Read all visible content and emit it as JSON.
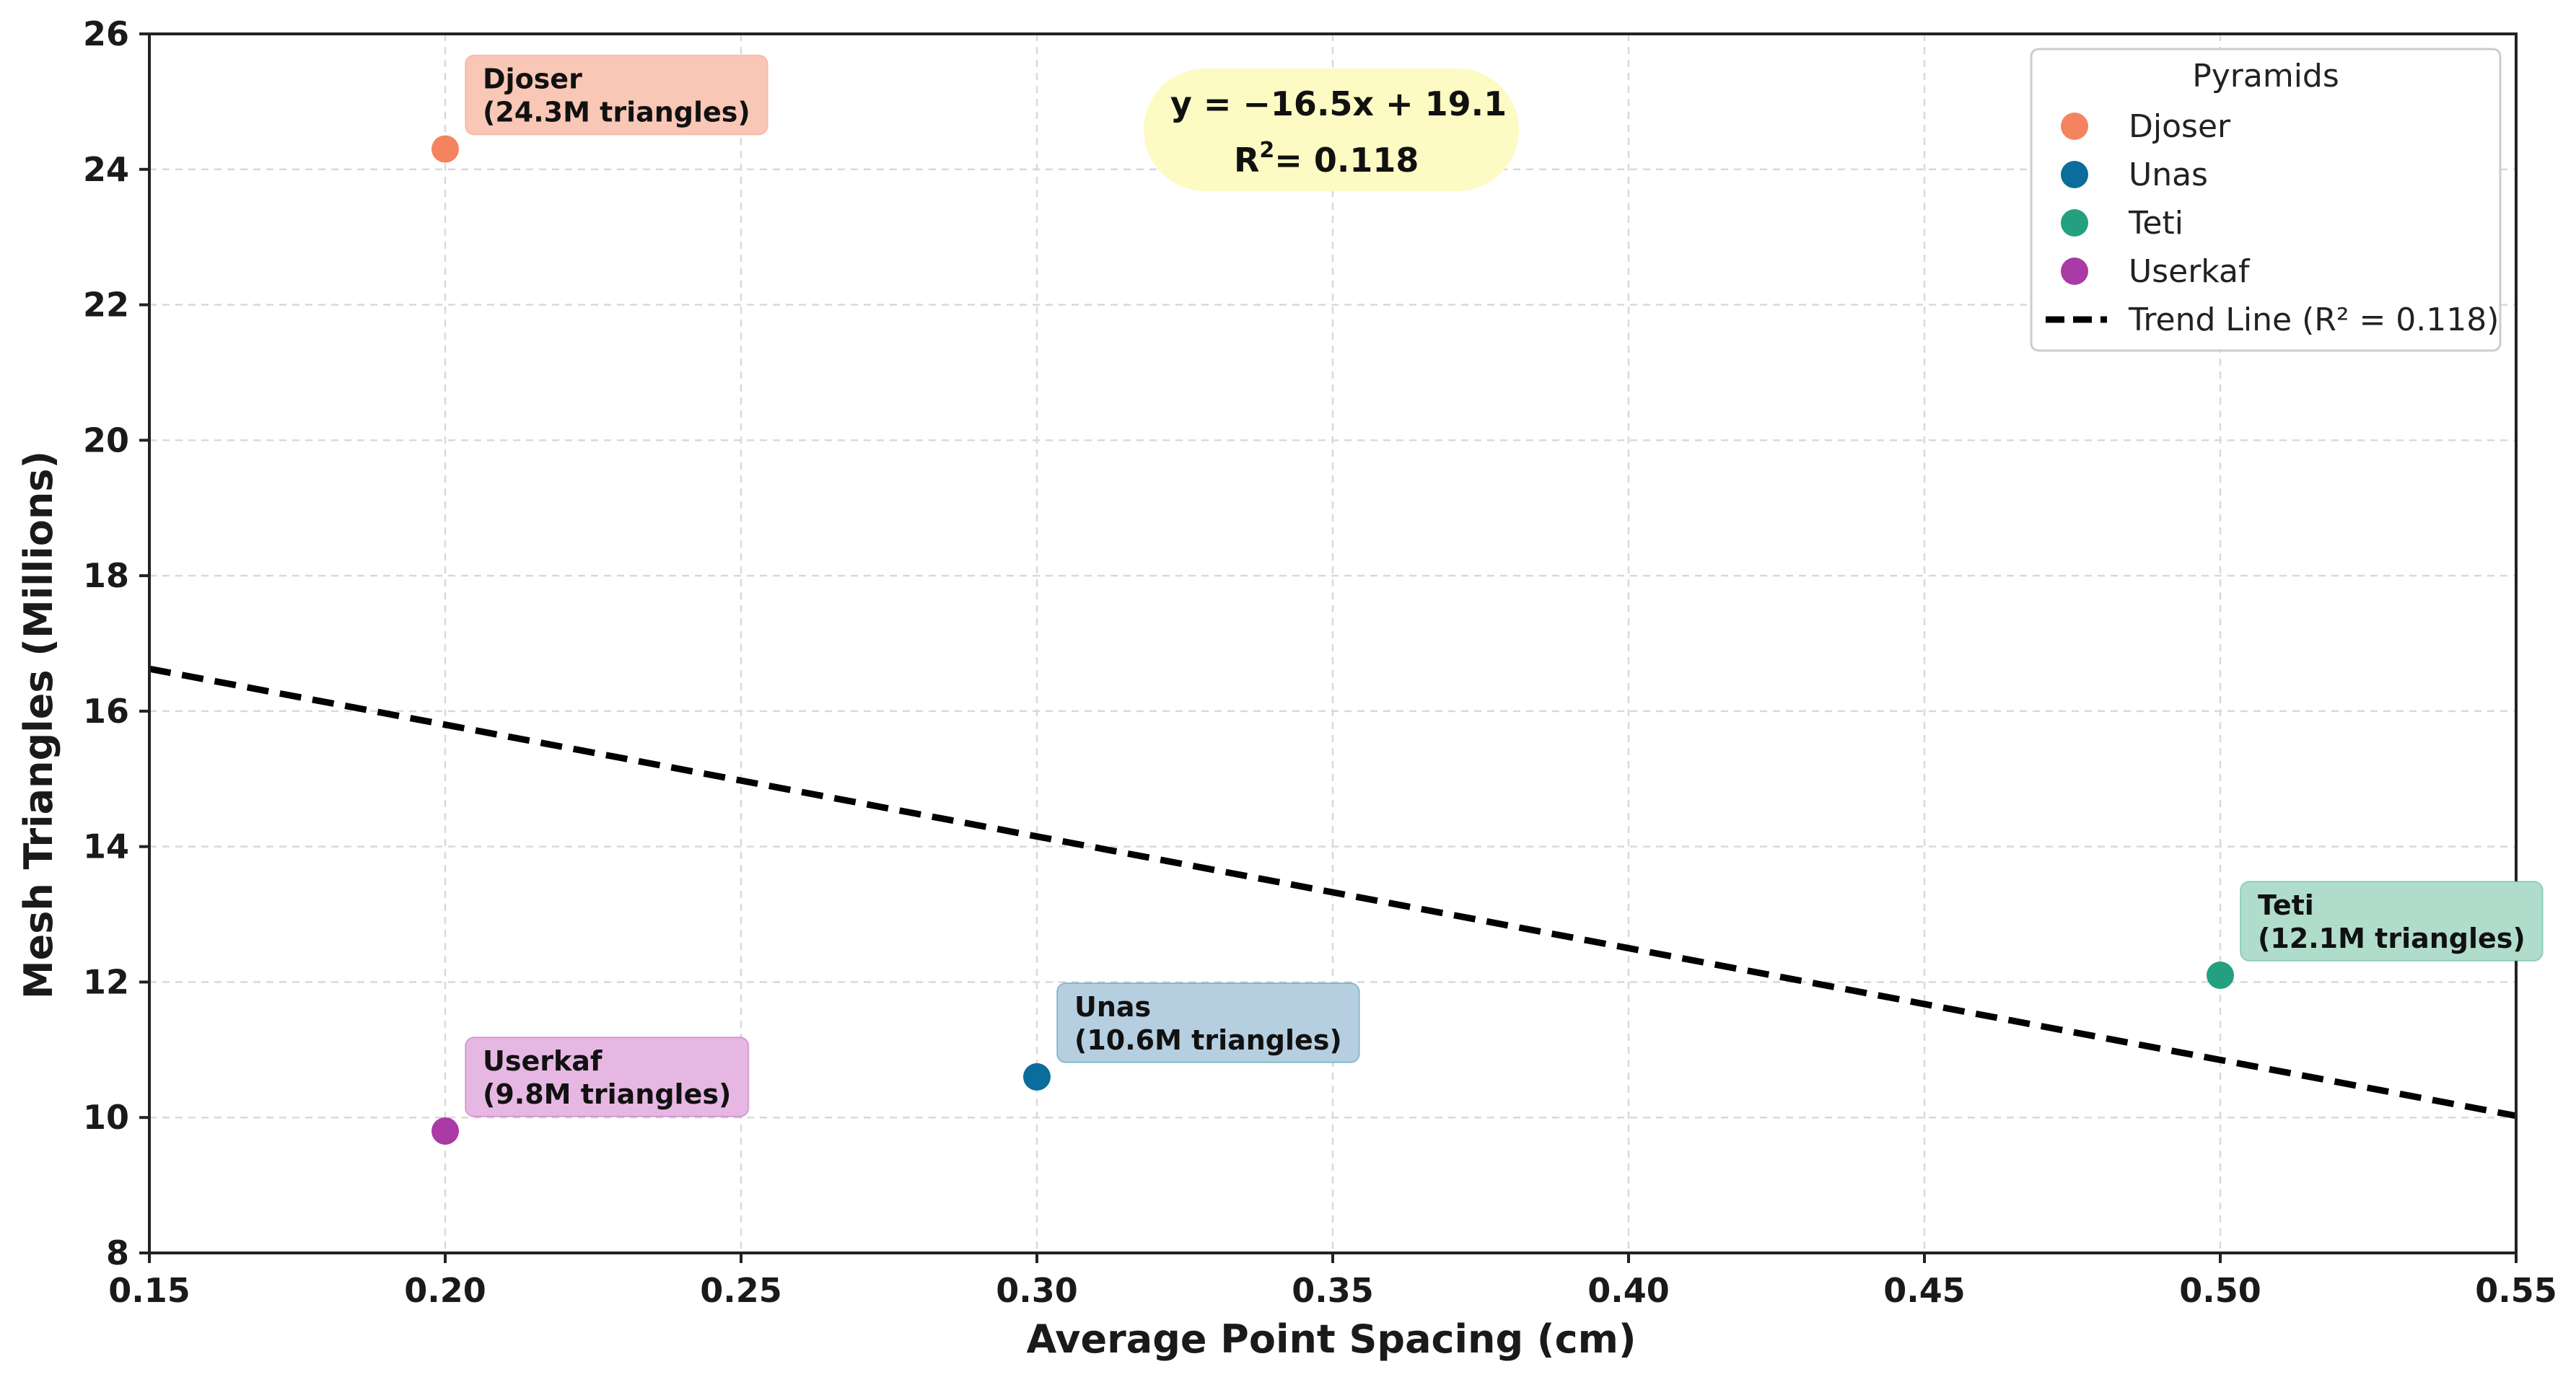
{
  "chart_data": {
    "type": "scatter",
    "xlabel": "Average Point Spacing (cm)",
    "ylabel": "Mesh Triangles (Millions)",
    "xlim": [
      0.15,
      0.55
    ],
    "ylim": [
      8,
      26
    ],
    "xticks": [
      "0.15",
      "0.20",
      "0.25",
      "0.30",
      "0.35",
      "0.40",
      "0.45",
      "0.50",
      "0.55"
    ],
    "xtick_values": [
      0.15,
      0.2,
      0.25,
      0.3,
      0.35,
      0.4,
      0.45,
      0.5,
      0.55
    ],
    "yticks": [
      "8",
      "10",
      "12",
      "14",
      "16",
      "18",
      "20",
      "22",
      "24",
      "26"
    ],
    "ytick_values": [
      8,
      10,
      12,
      14,
      16,
      18,
      20,
      22,
      24,
      26
    ],
    "grid": true,
    "legend": {
      "title": "Pyramids",
      "placement": "top-right",
      "trend_label": "Trend Line (R² = 0.118)"
    },
    "series": [
      {
        "name": "Djoser",
        "x": 0.2,
        "y": 24.3,
        "color": "#F4845F",
        "label_line1": "Djoser",
        "label_line2": "(24.3M triangles)",
        "label_bg": "#F9C7B6"
      },
      {
        "name": "Unas",
        "x": 0.3,
        "y": 10.6,
        "color": "#0A6D9C",
        "label_line1": "Unas",
        "label_line2": "(10.6M triangles)",
        "label_bg": "#B5CFE0"
      },
      {
        "name": "Teti",
        "x": 0.5,
        "y": 12.1,
        "color": "#23A07E",
        "label_line1": "Teti",
        "label_line2": "(12.1M triangles)",
        "label_bg": "#B0DCCB"
      },
      {
        "name": "Userkaf",
        "x": 0.2,
        "y": 9.8,
        "color": "#A93AA6",
        "label_line1": "Userkaf",
        "label_line2": "(9.8M triangles)",
        "label_bg": "#E7B7E3"
      }
    ],
    "trend_line": {
      "slope": -16.5,
      "intercept": 19.1,
      "r2": 0.118,
      "color": "#000000"
    },
    "equation_box": {
      "line1": "y = −16.5x + 19.1",
      "line2_prefix": "R",
      "line2_sup": "2",
      "line2_suffix": "= 0.118",
      "bg": "#FDFAC4"
    }
  }
}
